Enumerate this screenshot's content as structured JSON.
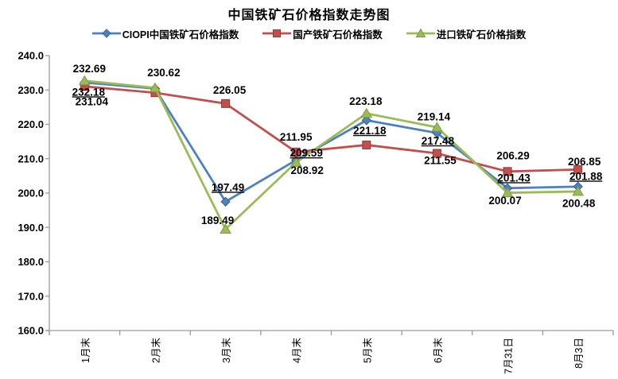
{
  "chart_data": {
    "type": "line",
    "title": "中国铁矿石价格指数走势图",
    "categories": [
      "1月末",
      "2月末",
      "3月末",
      "4月末",
      "5月末",
      "6月末",
      "7月31日",
      "8月3日"
    ],
    "series": [
      {
        "name": "CIOPI中国铁矿石价格指数",
        "color": "#4F81BD",
        "edge": "#38618F",
        "marker": "diamond",
        "underline_labels": true,
        "values": [
          232.18,
          230.4,
          197.49,
          209.59,
          221.18,
          217.48,
          201.43,
          201.88
        ],
        "labels": [
          "232.18",
          null,
          "197.49",
          "209.59",
          "221.18",
          "217.48",
          "201.43",
          "201.88"
        ]
      },
      {
        "name": "国产铁矿石价格指数",
        "color": "#C0504D",
        "edge": "#8F3B39",
        "marker": "square",
        "underline_labels": false,
        "values": [
          231.04,
          229.2,
          226.05,
          211.95,
          214.0,
          211.55,
          206.29,
          206.85
        ],
        "labels": [
          "231.04",
          null,
          "226.05",
          "211.95",
          null,
          "211.55",
          "206.29",
          "206.85"
        ]
      },
      {
        "name": "进口铁矿石价格指数",
        "color": "#9BBB59",
        "edge": "#7E9A44",
        "marker": "triangle",
        "underline_labels": false,
        "values": [
          232.69,
          230.62,
          189.49,
          208.92,
          223.18,
          219.14,
          200.07,
          200.48
        ],
        "labels": [
          "232.69",
          "230.62",
          "189.49",
          "208.92",
          "223.18",
          "219.14",
          "200.07",
          "200.48"
        ]
      }
    ],
    "ylim": [
      160,
      240
    ],
    "ytick_step": 10,
    "ytick_labels": [
      "240.0",
      "230.0",
      "220.0",
      "210.0",
      "200.0",
      "190.0",
      "180.0",
      "170.0",
      "160.0"
    ],
    "grid": false,
    "legend_position": "top"
  },
  "colors": {
    "axis": "#9B9B9B",
    "text": "#000000"
  }
}
